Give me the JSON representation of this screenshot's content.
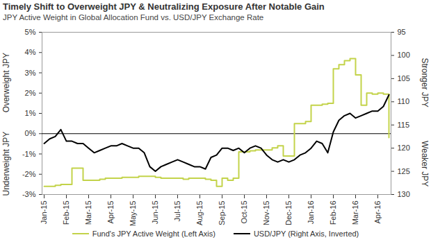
{
  "chart_data": {
    "type": "line",
    "title": "Timely Shift to Overweight JPY & Neutralizing Exposure After Notable Gain",
    "subtitle": "JPY Active Weight in Global Allocation Fund vs. USD/JPY Exchange Rate",
    "categories": [
      "Jan-15",
      null,
      null,
      null,
      "Feb-15",
      null,
      null,
      null,
      "Mar-15",
      null,
      null,
      null,
      "Apr-15",
      null,
      null,
      null,
      "May-15",
      null,
      null,
      null,
      "Jun-15",
      null,
      null,
      null,
      "Jul-15",
      null,
      null,
      null,
      "Aug-15",
      null,
      null,
      null,
      "Sep-15",
      null,
      null,
      null,
      "Oct-15",
      null,
      null,
      null,
      "Nov-15",
      null,
      null,
      null,
      "Dec-15",
      null,
      null,
      null,
      "Jan-16",
      null,
      null,
      null,
      "Feb-16",
      null,
      null,
      null,
      "Mar-16",
      null,
      null,
      null,
      "Apr-16",
      null,
      null
    ],
    "series": [
      {
        "name": "Fund's JPY Active Weight (Left Axis)",
        "color": "#c3d34a",
        "values": [
          -2.6,
          -2.6,
          -2.55,
          -2.5,
          -2.5,
          -1.7,
          -1.7,
          -2.3,
          -2.3,
          -2.3,
          -2.25,
          -2.2,
          -2.2,
          -2.2,
          -2.15,
          -2.15,
          -2.15,
          -2.1,
          -2.1,
          -2.1,
          -2.15,
          -2.2,
          -2.2,
          -2.2,
          -2.2,
          -2.25,
          -2.2,
          -2.2,
          -2.2,
          -2.25,
          -2.3,
          -2.6,
          -2.2,
          -2.3,
          -2.2,
          -0.9,
          -0.9,
          -0.85,
          -0.8,
          -0.8,
          -0.8,
          -0.7,
          -0.6,
          -1.1,
          -1.1,
          0.5,
          0.5,
          0.6,
          1.4,
          1.4,
          1.45,
          1.5,
          3.2,
          3.4,
          3.6,
          3.7,
          2.9,
          1.4,
          2.0,
          1.95,
          2.0,
          1.95,
          -0.2
        ]
      },
      {
        "name": "USD/JPY (Right Axis, Inverted)",
        "color": "#000000",
        "axis": "y2",
        "values": [
          119,
          118,
          117.5,
          116,
          118.5,
          118.5,
          119,
          119,
          120,
          121,
          120.5,
          120,
          119.5,
          119.5,
          119,
          119.5,
          120,
          120,
          121,
          124,
          125,
          124,
          123.5,
          123,
          122.5,
          123,
          123.5,
          124,
          124,
          124.5,
          122,
          121.5,
          120,
          120,
          120.5,
          120,
          121,
          120,
          119.5,
          120,
          121.5,
          122.5,
          123,
          122.5,
          123,
          122.5,
          121.5,
          121,
          120,
          118.5,
          119,
          121,
          116.5,
          114,
          113,
          112.5,
          113.5,
          113,
          112.5,
          112,
          112,
          111,
          108.5
        ]
      }
    ],
    "ylim": [
      -3,
      5
    ],
    "yticks": [
      {
        "value": -3,
        "label": "-3%"
      },
      {
        "value": -2,
        "label": "-2%"
      },
      {
        "value": -1,
        "label": "-1%"
      },
      {
        "value": 0,
        "label": "0%"
      },
      {
        "value": 1,
        "label": "1%"
      },
      {
        "value": 2,
        "label": "2%"
      },
      {
        "value": 3,
        "label": "3%"
      },
      {
        "value": 4,
        "label": "4%"
      },
      {
        "value": 5,
        "label": "5%"
      }
    ],
    "y2lim": [
      130,
      95
    ],
    "y2ticks": [
      95,
      100,
      105,
      110,
      115,
      120,
      125,
      130
    ],
    "reference_lines": [
      0
    ],
    "y_annotations": [
      "Overweight JPY",
      "Underweight JPY"
    ],
    "y2_annotations": [
      "Stronger JPY",
      "Weaker JPY"
    ],
    "grid": false,
    "legend": "bottom"
  }
}
